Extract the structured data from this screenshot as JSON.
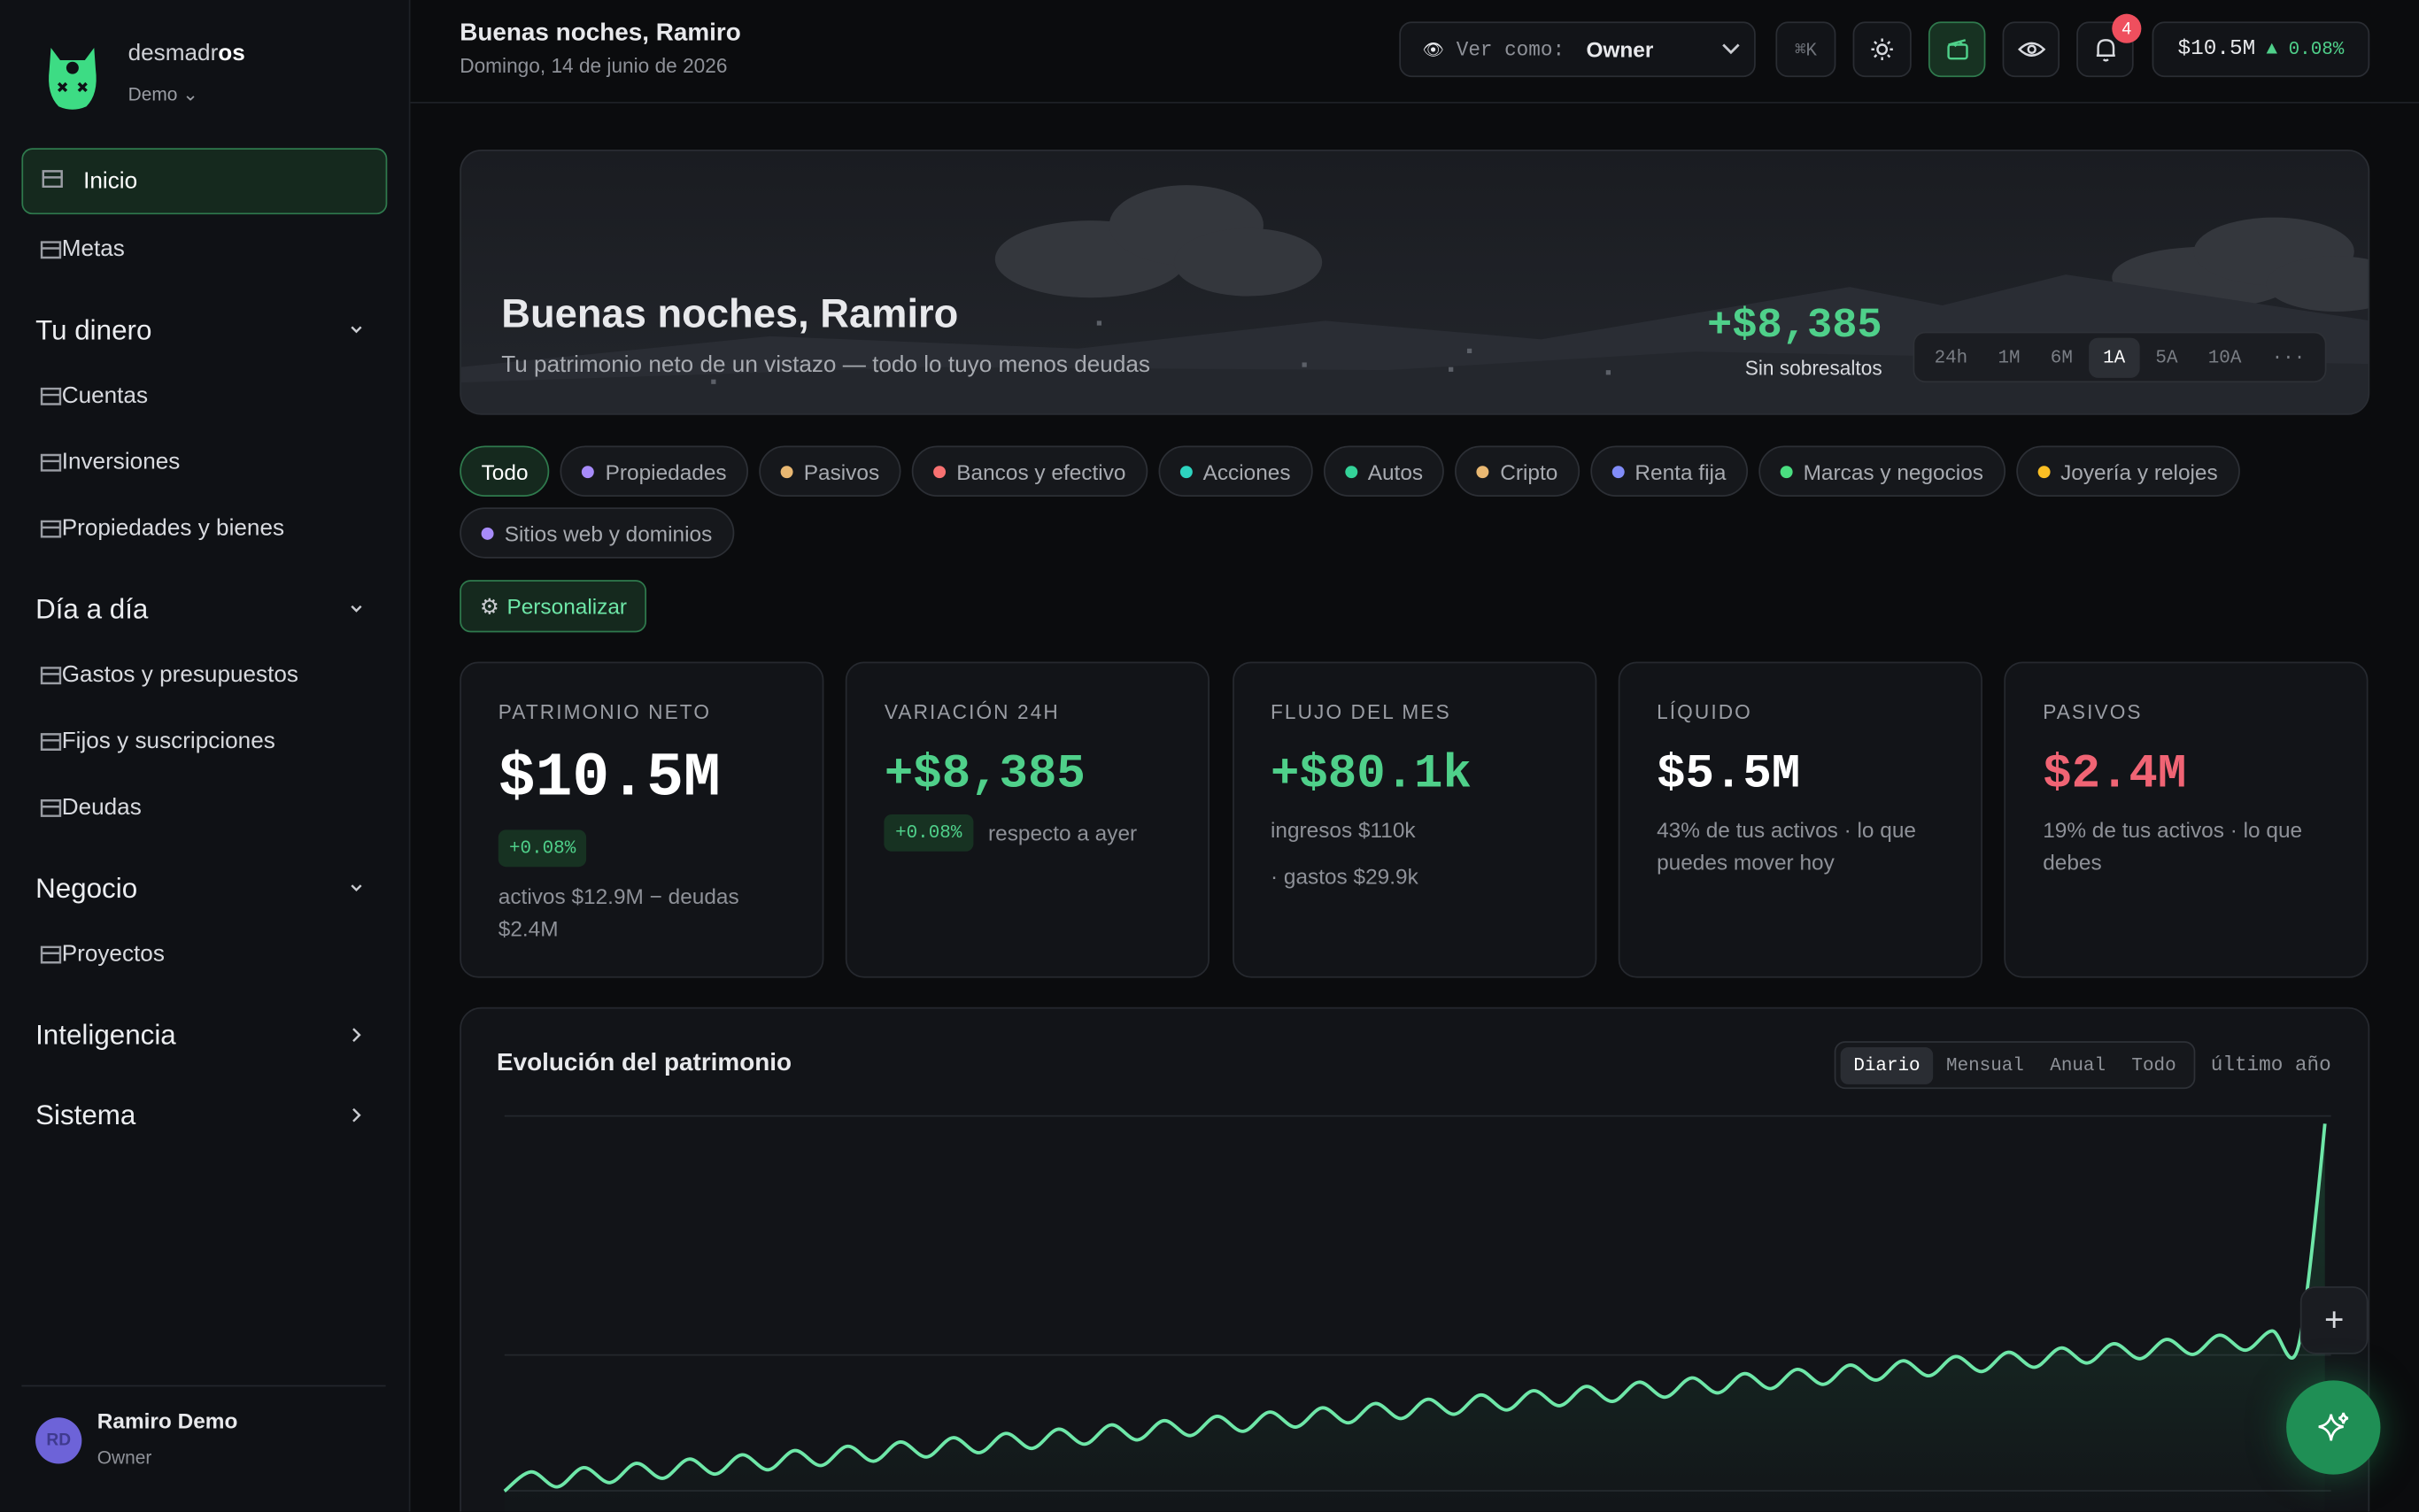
{
  "sidebar": {
    "brand": [
      "desmadr",
      "os"
    ],
    "workspace": "Demo",
    "items": [
      "Inicio",
      "Metas"
    ],
    "sections": [
      {
        "title": "Tu dinero",
        "items": [
          "Cuentas",
          "Inversiones",
          "Propiedades y bienes"
        ]
      },
      {
        "title": "Día a día",
        "items": [
          "Gastos y presupuestos",
          "Fijos y suscripciones",
          "Deudas"
        ]
      },
      {
        "title": "Negocio",
        "items": [
          "Proyectos"
        ]
      },
      {
        "title": "Inteligencia"
      },
      {
        "title": "Sistema"
      }
    ],
    "user": {
      "initials": "RD",
      "name": "Ramiro Demo",
      "role": "Owner"
    }
  },
  "header": {
    "title": "Buenas noches, Ramiro",
    "date": "Domingo, 14 de junio de 2026",
    "view_label": "Ver como:",
    "view_value": "Owner",
    "shortcut": "⌘K",
    "notifications": "4",
    "balance": "$10.5M",
    "change": "▲ 0.08%"
  },
  "hero": {
    "title": "Buenas noches, Ramiro",
    "subtitle": "Tu patrimonio neto de un vistazo — todo lo tuyo menos deudas",
    "change": "+$8,385",
    "status": "Sin sobresaltos",
    "ranges": [
      "24h",
      "1M",
      "6M",
      "1A",
      "5A",
      "10A",
      "···"
    ]
  },
  "filters": [
    {
      "label": "Todo"
    },
    {
      "label": "Propiedades",
      "color": "#a78bfa"
    },
    {
      "label": "Pasivos",
      "color": "#e9b872"
    },
    {
      "label": "Bancos y efectivo",
      "color": "#f87171"
    },
    {
      "label": "Acciones",
      "color": "#2dd4bf"
    },
    {
      "label": "Autos",
      "color": "#34d399"
    },
    {
      "label": "Cripto",
      "color": "#e9b872"
    },
    {
      "label": "Renta fija",
      "color": "#818cf8"
    },
    {
      "label": "Marcas y negocios",
      "color": "#4ade80"
    },
    {
      "label": "Joyería y relojes",
      "color": "#fbbf24"
    },
    {
      "label": "Sitios web y dominios",
      "color": "#a78bfa"
    }
  ],
  "customize": "Personalizar",
  "cards": [
    {
      "label": "PATRIMONIO NETO",
      "value": "$10.5M",
      "value_color": "#ffffff",
      "badge": "+0.08%",
      "note": "activos $12.9M − deudas $2.4M"
    },
    {
      "label": "VARIACIÓN 24H",
      "value": "+$8,385",
      "value_color": "#4fd08a",
      "badge": "+0.08%",
      "badge_caption": "respecto a ayer"
    },
    {
      "label": "FLUJO DEL MES",
      "value": "+$80.1k",
      "value_color": "#4fd08a",
      "lines": [
        "ingresos $110k",
        "· gastos $29.9k"
      ]
    },
    {
      "label": "LÍQUIDO",
      "value": "$5.5M",
      "value_color": "#ffffff",
      "note": "43% de tus activos · lo que puedes mover hoy"
    },
    {
      "label": "PASIVOS",
      "value": "$2.4M",
      "value_color": "#f06474",
      "note": "19% de tus activos · lo que debes"
    }
  ],
  "chart": {
    "type": "line",
    "title": "Evolución del patrimonio",
    "tabs": [
      "Diario",
      "Mensual",
      "Anual",
      "Todo"
    ],
    "period": "último año",
    "color": "#6ee7a8",
    "ylim": [
      0,
      100
    ],
    "values": [
      12,
      16.5,
      13,
      17.5,
      14,
      18.5,
      15,
      19.5,
      16,
      20.5,
      17,
      21.5,
      18,
      22.5,
      19,
      23.5,
      20,
      24.5,
      21,
      25.5,
      22,
      26.5,
      23,
      27.5,
      24,
      28.5,
      25,
      29.5,
      26,
      30.5,
      27,
      31.5,
      28,
      32.5,
      29,
      33.5,
      30,
      34.5,
      31,
      35.5,
      32,
      36.5,
      33,
      37.5,
      34,
      38.5,
      35,
      39.5,
      36,
      40.5,
      37,
      41.5,
      38,
      42.5,
      39,
      43.5,
      40,
      44.5,
      41,
      45.5,
      42,
      46.5,
      43,
      47.5,
      44,
      48.5,
      45,
      49.5,
      46,
      98
    ]
  }
}
